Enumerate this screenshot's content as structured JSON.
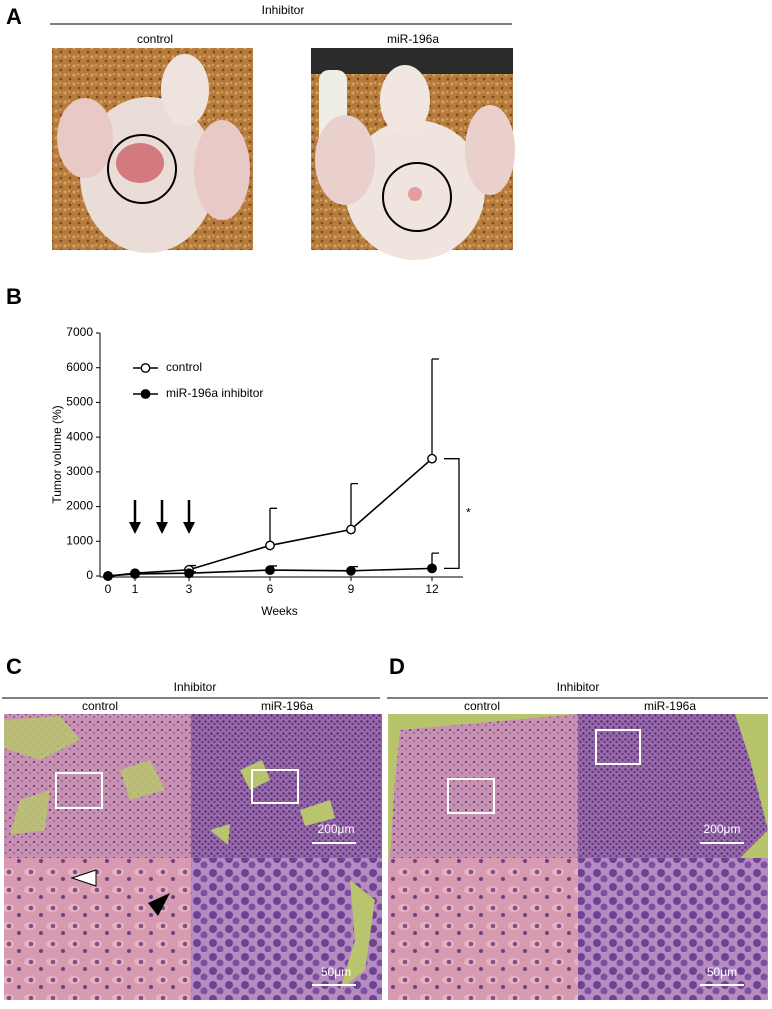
{
  "panels": {
    "A": {
      "label": "A",
      "group": "Inhibitor",
      "columns": [
        "control",
        "miR-196a"
      ]
    },
    "B": {
      "label": "B"
    },
    "C": {
      "label": "C",
      "group": "Inhibitor",
      "columns": [
        "control",
        "miR-196a"
      ],
      "scale_bars": [
        "200μm",
        "50μm"
      ]
    },
    "D": {
      "label": "D",
      "group": "Inhibitor",
      "columns": [
        "control",
        "miR-196a"
      ],
      "scale_bars": [
        "200μm",
        "50μm"
      ]
    }
  },
  "chart_data": {
    "type": "line",
    "y_label": "Tumor volume (%)",
    "x_label": "Weeks",
    "x": [
      0,
      1,
      3,
      6,
      9,
      12
    ],
    "series": [
      {
        "name": "control",
        "color": "#000000",
        "marker": "open",
        "values": [
          0,
          80,
          180,
          880,
          1340,
          3380
        ],
        "errors": [
          0,
          20,
          120,
          1070,
          1320,
          2870
        ]
      },
      {
        "name": "miR-196a inhibitor",
        "color": "#000000",
        "marker": "filled",
        "values": [
          0,
          60,
          80,
          170,
          150,
          220
        ],
        "errors": [
          0,
          20,
          40,
          120,
          120,
          440
        ]
      }
    ],
    "xlim": [
      0,
      13
    ],
    "ylim": [
      0,
      7000
    ],
    "xticks": [
      0,
      1,
      3,
      6,
      9,
      12
    ],
    "yticks": [
      0,
      1000,
      2000,
      3000,
      4000,
      5000,
      6000,
      7000
    ],
    "arrows_x": [
      1,
      2,
      3
    ],
    "significance": "*",
    "grid": false
  }
}
